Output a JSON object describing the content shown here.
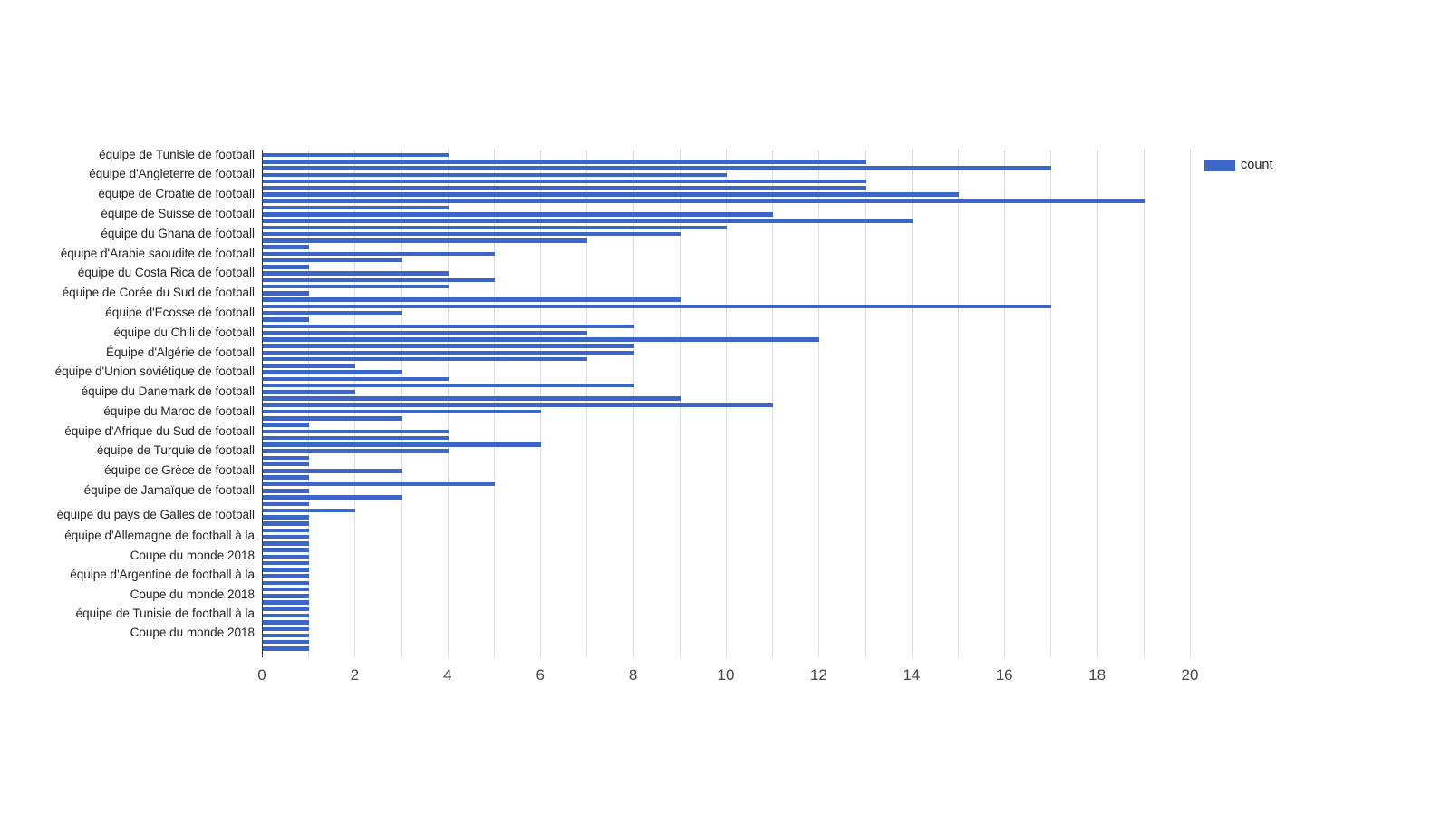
{
  "chart_data": {
    "type": "bar",
    "orientation": "horizontal",
    "title": "",
    "xlabel": "",
    "ylabel": "",
    "xlim": [
      0,
      20
    ],
    "x_ticks": [
      "0",
      "2",
      "4",
      "6",
      "8",
      "10",
      "12",
      "14",
      "16",
      "18",
      "20"
    ],
    "grid": true,
    "legend_position": "top-right",
    "series": [
      {
        "name": "count",
        "color": "#3b66c8",
        "values": [
          4,
          13,
          17,
          10,
          13,
          13,
          15,
          19,
          4,
          11,
          14,
          10,
          9,
          7,
          1,
          5,
          3,
          1,
          4,
          5,
          4,
          1,
          9,
          17,
          3,
          1,
          8,
          7,
          12,
          8,
          8,
          7,
          2,
          3,
          4,
          8,
          2,
          9,
          11,
          6,
          3,
          1,
          4,
          4,
          6,
          4,
          1,
          1,
          3,
          1,
          5,
          1,
          3,
          1,
          2,
          1,
          1,
          1,
          1,
          1,
          1,
          1,
          1,
          1,
          1,
          1,
          1,
          1,
          1,
          1,
          1,
          1,
          1,
          1,
          1,
          1
        ]
      }
    ],
    "y_tick_labels": [
      {
        "row": 1,
        "lines": [
          "équipe de Tunisie de football"
        ]
      },
      {
        "row": 4,
        "lines": [
          "équipe d'Angleterre de football"
        ]
      },
      {
        "row": 7,
        "lines": [
          "équipe de Croatie de football"
        ]
      },
      {
        "row": 10,
        "lines": [
          "équipe de Suisse de football"
        ]
      },
      {
        "row": 13,
        "lines": [
          "équipe du Ghana de football"
        ]
      },
      {
        "row": 16,
        "lines": [
          "équipe d'Arabie saoudite de football"
        ]
      },
      {
        "row": 19,
        "lines": [
          "équipe du Costa Rica de football"
        ]
      },
      {
        "row": 22,
        "lines": [
          "équipe de Corée du Sud de football"
        ]
      },
      {
        "row": 25,
        "lines": [
          "équipe d'Écosse de football"
        ]
      },
      {
        "row": 28,
        "lines": [
          "équipe du Chili de football"
        ]
      },
      {
        "row": 31,
        "lines": [
          "Équipe d'Algérie de football"
        ]
      },
      {
        "row": 34,
        "lines": [
          "équipe d'Union soviétique de football"
        ]
      },
      {
        "row": 37,
        "lines": [
          "équipe du Danemark de football"
        ]
      },
      {
        "row": 40,
        "lines": [
          "équipe du Maroc de football"
        ]
      },
      {
        "row": 43,
        "lines": [
          "équipe d'Afrique du Sud de football"
        ]
      },
      {
        "row": 46,
        "lines": [
          "équipe de Turquie de football"
        ]
      },
      {
        "row": 49,
        "lines": [
          "équipe de Grèce de football"
        ]
      },
      {
        "row": 52,
        "lines": [
          "équipe de Jamaïque de football"
        ]
      },
      {
        "row": 55.7,
        "lines": [
          "équipe du pays de Galles de football"
        ]
      },
      {
        "row": 60.4,
        "lines": [
          "équipe d'Allemagne de football à la",
          "Coupe du monde 2018"
        ]
      },
      {
        "row": 66.3,
        "lines": [
          "équipe d'Argentine de football à la",
          "Coupe du monde 2018"
        ]
      },
      {
        "row": 72.2,
        "lines": [
          "équipe de Tunisie de football à la",
          "Coupe du monde 2018"
        ]
      }
    ]
  },
  "legend": {
    "label": "count",
    "color": "#3b66c8"
  },
  "colors": {
    "bar": "#3b66c8",
    "gridline": "#dddddd",
    "axis_line": "#333333",
    "y_label_text": "#222222",
    "x_label_text": "#444444",
    "background": "#ffffff"
  }
}
